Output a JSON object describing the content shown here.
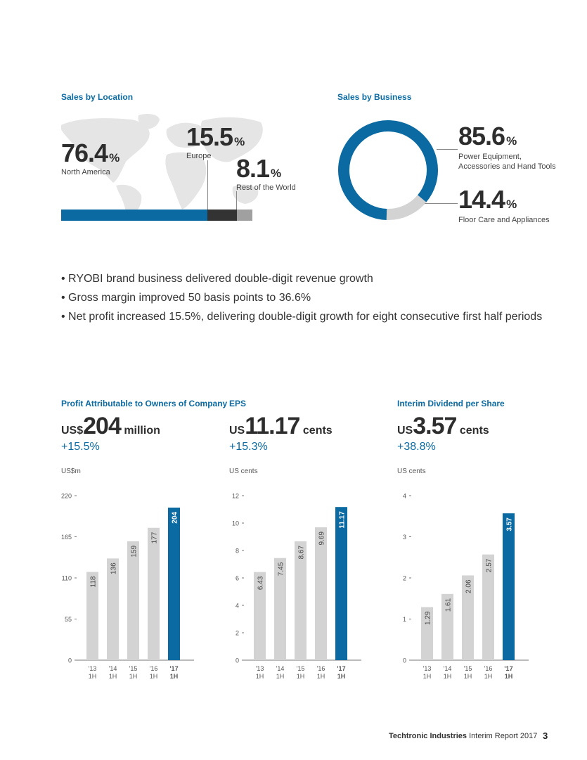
{
  "sales_by_location": {
    "title": "Sales by Location",
    "regions": [
      {
        "value": "76.4",
        "unit": "%",
        "name": "North America",
        "share": 76.4,
        "color": "#0a6aa1"
      },
      {
        "value": "15.5",
        "unit": "%",
        "name": "Europe",
        "share": 15.5,
        "color": "#333333"
      },
      {
        "value": "8.1",
        "unit": "%",
        "name": "Rest of the World",
        "share": 8.1,
        "color": "#a0a0a0"
      }
    ]
  },
  "sales_by_business": {
    "title": "Sales by Business",
    "segments": [
      {
        "value": "85.6",
        "unit": "%",
        "name_line1": "Power Equipment,",
        "name_line2": "Accessories and Hand Tools",
        "share": 85.6,
        "color": "#0a6aa1"
      },
      {
        "value": "14.4",
        "unit": "%",
        "name_line1": "Floor Care and Appliances",
        "name_line2": "",
        "share": 14.4,
        "color": "#d3d3d3"
      }
    ]
  },
  "bullets": [
    "• RYOBI brand business delivered double-digit revenue growth",
    "• Gross margin improved 50 basis points to 36.6%",
    "• Net profit increased 15.5%, delivering double-digit growth for eight consecutive first half periods"
  ],
  "kpis": [
    {
      "title": "Profit Attributable to Owners of Company",
      "prefix": "US$",
      "number": "204",
      "unit": "million",
      "growth": "+15.5%",
      "axis_unit": "US$m"
    },
    {
      "title": "EPS",
      "prefix": "US",
      "number": "11.17",
      "unit": "cents",
      "growth": "+15.3%",
      "axis_unit": "US cents"
    },
    {
      "title": "Interim Dividend per Share",
      "prefix": "US",
      "number": "3.57",
      "unit": "cents",
      "growth": "+38.8%",
      "axis_unit": "US cents"
    }
  ],
  "chart_data": [
    {
      "type": "bar",
      "categories": [
        "'13 1H",
        "'14 1H",
        "'15 1H",
        "'16 1H",
        "'17 1H"
      ],
      "values": [
        118,
        136,
        159,
        177,
        204
      ],
      "value_labels": [
        "118",
        "136",
        "159",
        "177",
        "204"
      ],
      "ylim": [
        0,
        220
      ],
      "yticks": [
        0,
        55,
        110,
        165,
        220
      ],
      "ytick_labels": [
        "0",
        "55",
        "110",
        "165",
        "220"
      ],
      "ylabel": "US$m",
      "highlight_index": 4,
      "colors": {
        "bar": "#d3d3d3",
        "highlight": "#0a6aa1"
      }
    },
    {
      "type": "bar",
      "categories": [
        "'13 1H",
        "'14 1H",
        "'15 1H",
        "'16 1H",
        "'17 1H"
      ],
      "values": [
        6.43,
        7.45,
        8.67,
        9.69,
        11.17
      ],
      "value_labels": [
        "6.43",
        "7.45",
        "8.67",
        "9.69",
        "11.17"
      ],
      "ylim": [
        0,
        12
      ],
      "yticks": [
        0,
        2,
        4,
        6,
        8,
        10,
        12
      ],
      "ytick_labels": [
        "0",
        "2",
        "4",
        "6",
        "8",
        "10",
        "12"
      ],
      "ylabel": "US cents",
      "highlight_index": 4,
      "colors": {
        "bar": "#d3d3d3",
        "highlight": "#0a6aa1"
      }
    },
    {
      "type": "bar",
      "categories": [
        "'13 1H",
        "'14 1H",
        "'15 1H",
        "'16 1H",
        "'17 1H"
      ],
      "values": [
        1.29,
        1.61,
        2.06,
        2.57,
        3.57
      ],
      "value_labels": [
        "1.29",
        "1.61",
        "2.06",
        "2.57",
        "3.57"
      ],
      "ylim": [
        0,
        4
      ],
      "yticks": [
        0,
        1,
        2,
        3,
        4
      ],
      "ytick_labels": [
        "0",
        "1",
        "2",
        "3",
        "4"
      ],
      "ylabel": "US cents",
      "highlight_index": 4,
      "colors": {
        "bar": "#d3d3d3",
        "highlight": "#0a6aa1"
      }
    }
  ],
  "footer": {
    "company": "Techtronic Industries",
    "report": " Interim Report 2017",
    "page_number": "3"
  }
}
